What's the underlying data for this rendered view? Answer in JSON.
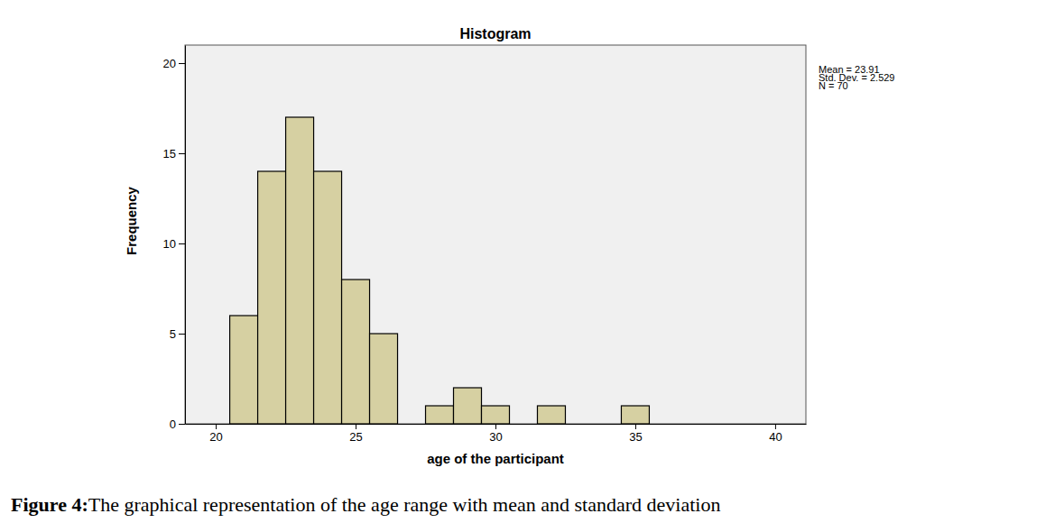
{
  "chart_data": {
    "type": "histogram",
    "title": "Histogram",
    "x_label": "age of the participant",
    "y_label": "Frequency",
    "bins": [
      20.5,
      21.5,
      22.5,
      23.5,
      24.5,
      25.5,
      26.5,
      27.5,
      28.5,
      29.5,
      30.5,
      31.5,
      32.5,
      33.5,
      34.5,
      35.5
    ],
    "values": [
      6,
      14,
      17,
      14,
      8,
      5,
      0,
      1,
      2,
      1,
      0,
      1,
      0,
      0,
      1
    ],
    "color": "#d6d0a2",
    "xlim": [
      18.9,
      41.1
    ],
    "xticks": [
      20,
      25,
      30,
      35,
      40
    ],
    "ylim": [
      0,
      21
    ],
    "yticks": [
      0,
      5,
      10,
      15,
      20
    ],
    "grid": false,
    "annotations": [
      "Mean = 23.91",
      "Std. Dev. = 2.529",
      "N = 70"
    ],
    "caption_label": "Figure 4:",
    "caption": "The graphical representation of the age range with mean and standard deviation"
  }
}
